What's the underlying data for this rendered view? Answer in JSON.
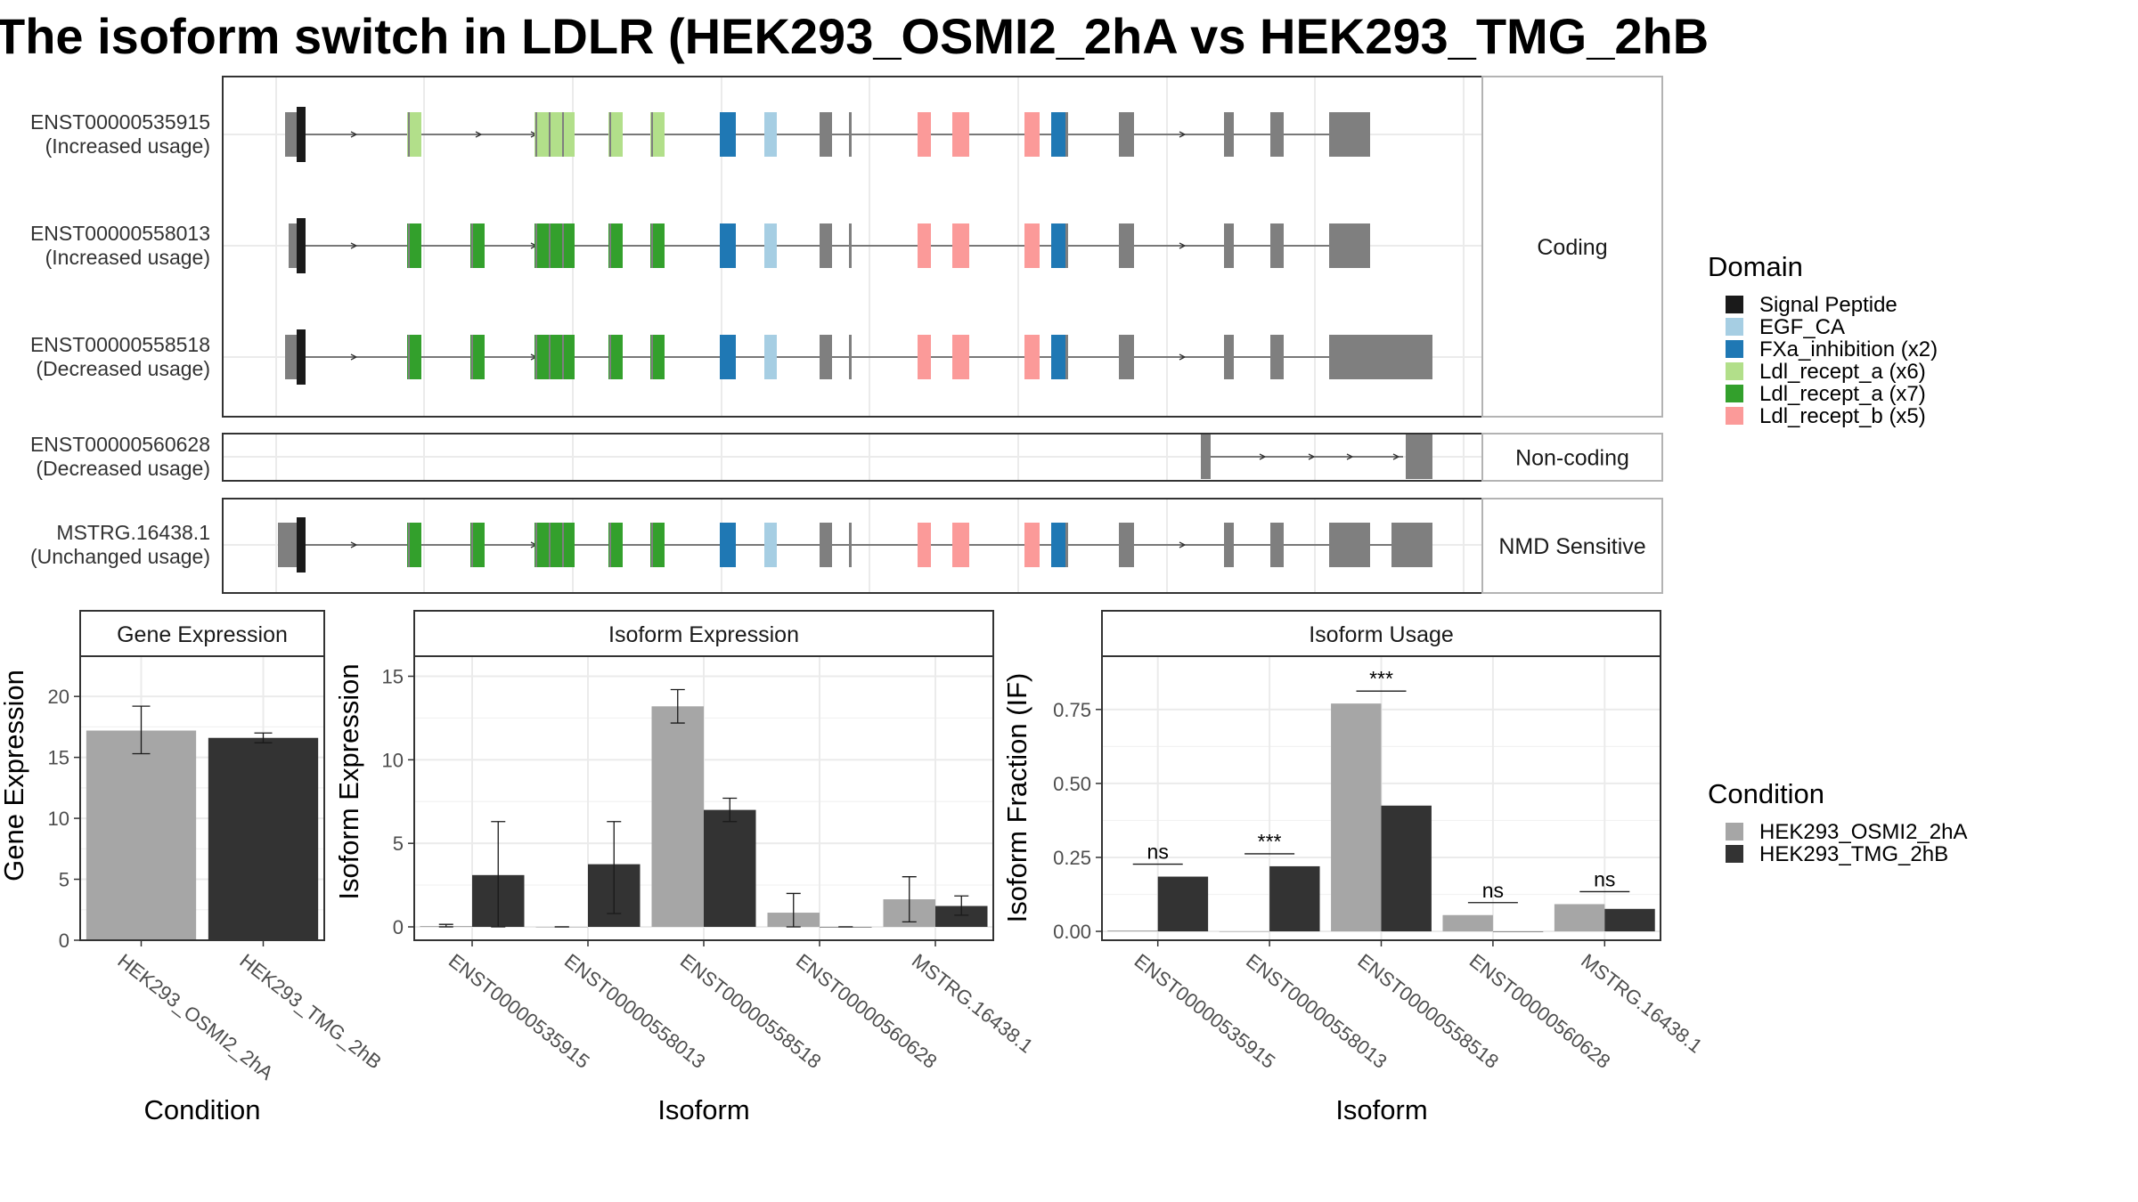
{
  "title": "The isoform switch in LDLR (HEK293_OSMI2_2hA vs HEK293_TMG_2hB",
  "colors": {
    "Signal Peptide": "#1a1a1a",
    "EGF_CA": "#a6cee3",
    "FXa_inhibition (x2)": "#1f78b4",
    "Ldl_recept_a (x6)": "#b2df8a",
    "Ldl_recept_a (x7)": "#33a02c",
    "Ldl_recept_b (x5)": "#fb9a99",
    "none": "#7f7f7f",
    "cond1": "#a6a6a6",
    "cond2": "#333333"
  },
  "transcripts": {
    "panels": [
      {
        "label": "Coding",
        "rows": [
          {
            "id": "ENST00000535915",
            "usage": "(Increased usage)",
            "variant": "a6",
            "tail": "short",
            "lead": "short"
          },
          {
            "id": "ENST00000558013",
            "usage": "(Increased usage)",
            "variant": "a7",
            "tail": "short",
            "lead": "tiny"
          },
          {
            "id": "ENST00000558518",
            "usage": "(Decreased usage)",
            "variant": "a7",
            "tail": "long",
            "lead": "short"
          }
        ]
      },
      {
        "label": "Non-coding",
        "rows": [
          {
            "id": "ENST00000560628",
            "usage": "(Decreased usage)",
            "variant": "noncoding"
          }
        ]
      },
      {
        "label": "NMD Sensitive",
        "rows": [
          {
            "id": "MSTRG.16438.1",
            "usage": "(Unchanged usage)",
            "variant": "a7",
            "tail": "nmd",
            "lead": "long"
          }
        ]
      }
    ]
  },
  "legend_domain": {
    "title": "Domain",
    "items": [
      "Signal Peptide",
      "EGF_CA",
      "FXa_inhibition (x2)",
      "Ldl_recept_a (x6)",
      "Ldl_recept_a (x7)",
      "Ldl_recept_b (x5)"
    ]
  },
  "legend_condition": {
    "title": "Condition",
    "items": [
      "HEK293_OSMI2_2hA",
      "HEK293_TMG_2hB"
    ]
  },
  "chart_data": [
    {
      "type": "bar",
      "title": "Gene Expression",
      "xlabel": "Condition",
      "ylabel": "Gene Expression",
      "categories": [
        "HEK293_OSMI2_2hA",
        "HEK293_TMG_2hB"
      ],
      "values": [
        17.2,
        16.6
      ],
      "errors": [
        [
          15.3,
          19.2
        ],
        [
          16.2,
          17.0
        ]
      ],
      "ylim": [
        0,
        23.3
      ],
      "yticks": [
        0,
        5,
        10,
        15,
        20
      ],
      "ytick_labels": [
        "0",
        "5",
        "10",
        "15",
        "20"
      ]
    },
    {
      "type": "bar",
      "title": "Isoform Expression",
      "xlabel": "Isoform",
      "ylabel": "Isoform Expression",
      "categories": [
        "ENST00000535915",
        "ENST00000558013",
        "ENST00000558518",
        "ENST00000560628",
        "MSTRG.16438.1"
      ],
      "series": [
        {
          "name": "HEK293_OSMI2_2hA",
          "values": [
            0.05,
            0.0,
            13.2,
            0.85,
            1.65
          ],
          "errors": [
            [
              0.0,
              0.15
            ],
            [
              0.0,
              0.0
            ],
            [
              12.2,
              14.2
            ],
            [
              0.0,
              2.0
            ],
            [
              0.3,
              3.0
            ]
          ]
        },
        {
          "name": "HEK293_TMG_2hB",
          "values": [
            3.1,
            3.75,
            7.0,
            0.0,
            1.25
          ],
          "errors": [
            [
              0.0,
              6.3
            ],
            [
              0.8,
              6.3
            ],
            [
              6.3,
              7.7
            ],
            [
              0.0,
              0.0
            ],
            [
              0.7,
              1.85
            ]
          ]
        }
      ],
      "ylim": [
        -0.8,
        16.2
      ],
      "yticks": [
        0,
        5,
        10,
        15
      ],
      "ytick_labels": [
        "0",
        "5",
        "10",
        "15"
      ]
    },
    {
      "type": "bar",
      "title": "Isoform Usage",
      "xlabel": "Isoform",
      "ylabel": "Isoform Fraction (IF)",
      "categories": [
        "ENST00000535915",
        "ENST00000558013",
        "ENST00000558518",
        "ENST00000560628",
        "MSTRG.16438.1"
      ],
      "series": [
        {
          "name": "HEK293_OSMI2_2hA",
          "values": [
            0.003,
            0.0,
            0.77,
            0.055,
            0.092
          ]
        },
        {
          "name": "HEK293_TMG_2hB",
          "values": [
            0.185,
            0.22,
            0.425,
            0.0,
            0.076
          ]
        }
      ],
      "significance": [
        "ns",
        "***",
        "***",
        "ns",
        "ns"
      ],
      "ylim": [
        -0.03,
        0.93
      ],
      "yticks": [
        0,
        0.25,
        0.5,
        0.75
      ],
      "ytick_labels": [
        "0.00",
        "0.25",
        "0.50",
        "0.75"
      ]
    }
  ]
}
